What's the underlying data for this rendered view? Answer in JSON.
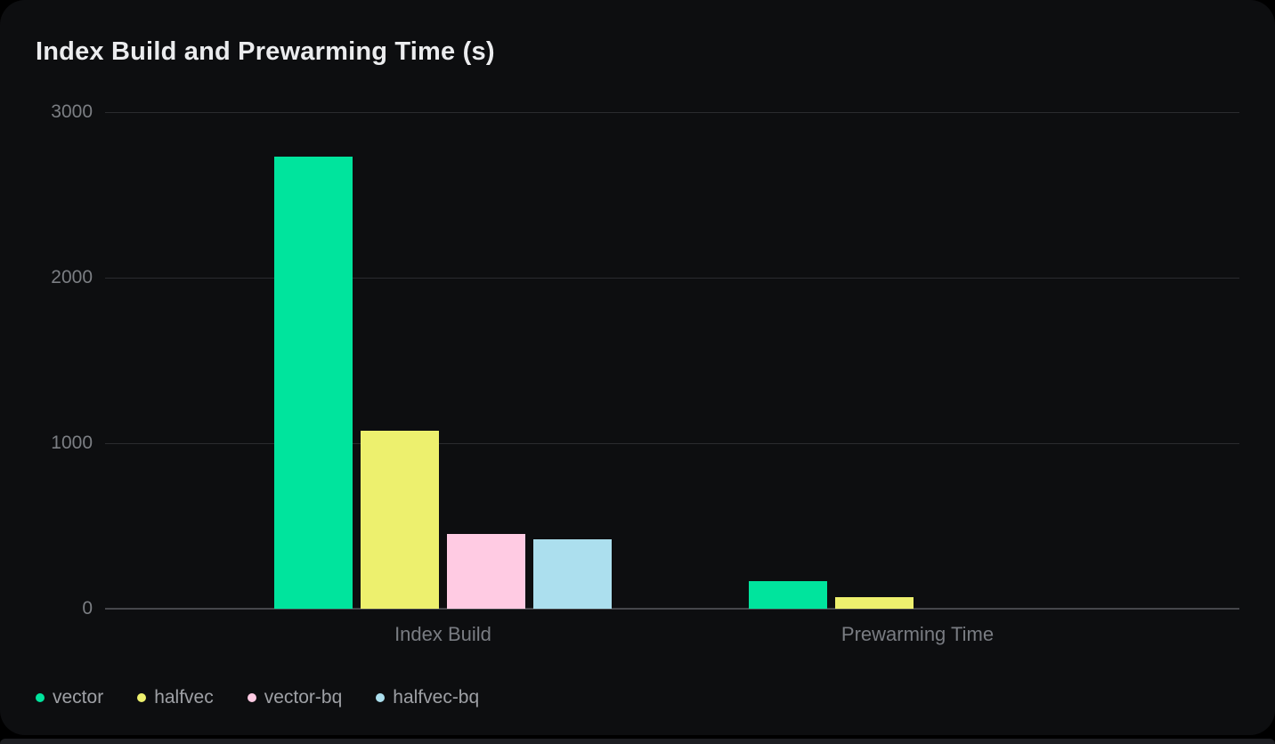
{
  "title": "Index Build and Prewarming Time (s)",
  "colors": {
    "page_background": "#000000",
    "card_background": "#0d0e10",
    "grid_line": "#2a2b2f",
    "axis_line": "#45464b",
    "title_text": "#ebecee",
    "tick_text": "#7b7e83",
    "category_text": "#797c82",
    "legend_text": "#9ea0a5",
    "next_card_edge": "#1d1e22"
  },
  "chart_data": {
    "type": "bar",
    "title": "Index Build and Prewarming Time (s)",
    "categories": [
      "Index Build",
      "Prewarming Time"
    ],
    "series": [
      {
        "name": "vector",
        "color": "#00e49d",
        "values": [
          2730,
          165
        ]
      },
      {
        "name": "halfvec",
        "color": "#edf06e",
        "values": [
          1075,
          70
        ]
      },
      {
        "name": "vector-bq",
        "color": "#ffcbe3",
        "values": [
          450,
          0
        ]
      },
      {
        "name": "halfvec-bq",
        "color": "#acdfee",
        "values": [
          420,
          0
        ]
      }
    ],
    "xlabel": "",
    "ylabel": "",
    "ylim": [
      0,
      3000
    ],
    "yticks": [
      0,
      1000,
      2000,
      3000
    ],
    "grid": true,
    "legend_position": "bottom-left",
    "value_unit": "s"
  }
}
